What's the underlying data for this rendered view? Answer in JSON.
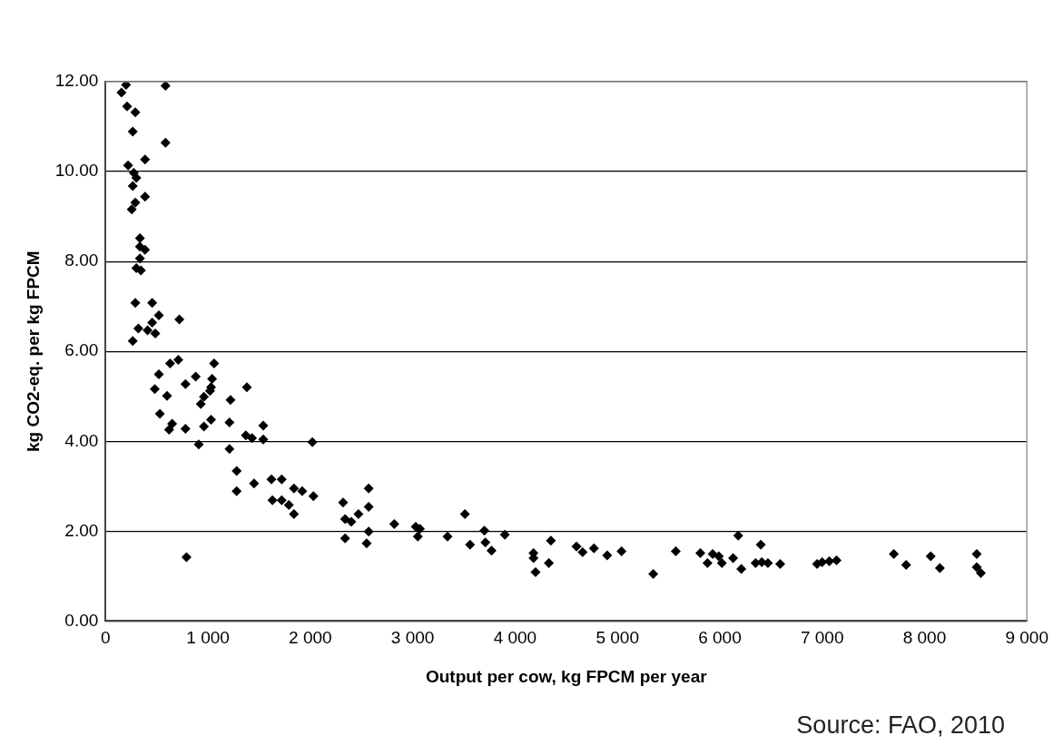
{
  "chart_data": {
    "type": "scatter",
    "xlabel": "Output per cow, kg FPCM per year",
    "ylabel": "kg CO2-eq. per kg FPCM",
    "annotations": [
      "Source: FAO, 2010"
    ],
    "xlim": [
      0,
      9000
    ],
    "xticks": [
      0,
      {
        "value": 1000,
        "label": "1 000"
      },
      {
        "value": 2000,
        "label": "2 000"
      },
      {
        "value": 3000,
        "label": "3 000"
      },
      {
        "value": 4000,
        "label": "4 000"
      },
      {
        "value": 5000,
        "label": "5 000"
      },
      {
        "value": 6000,
        "label": "6 000"
      },
      {
        "value": 7000,
        "label": "7 000"
      },
      {
        "value": 8000,
        "label": "8 000"
      },
      {
        "value": 9000,
        "label": "9 000"
      }
    ],
    "ylim": [
      0,
      12
    ],
    "yticks": [
      {
        "value": 0,
        "label": "0.00"
      },
      {
        "value": 2,
        "label": "2.00"
      },
      {
        "value": 4,
        "label": "4.00"
      },
      {
        "value": 6,
        "label": "6.00"
      },
      {
        "value": 8,
        "label": "8.00"
      },
      {
        "value": 10,
        "label": "10.00"
      },
      {
        "value": 12,
        "label": "12.00"
      }
    ],
    "grid": "y",
    "legend": false,
    "marker": "diamond",
    "series": [
      {
        "color": "#000000",
        "x": [
          200,
          155,
          210,
          290,
          265,
          585,
          585,
          385,
          220,
          275,
          300,
          265,
          385,
          290,
          255,
          335,
          335,
          385,
          335,
          300,
          345,
          290,
          455,
          520,
          455,
          720,
          320,
          410,
          485,
          265,
          710,
          630,
          1060,
          520,
          880,
          1040,
          780,
          480,
          1030,
          1380,
          600,
          960,
          930,
          1220,
          1020,
          530,
          650,
          620,
          780,
          960,
          1030,
          1210,
          1540,
          1370,
          1430,
          1540,
          910,
          1210,
          2020,
          1280,
          1280,
          1450,
          1620,
          1720,
          1840,
          1920,
          2030,
          1630,
          1720,
          1790,
          1840,
          2320,
          2570,
          2570,
          2470,
          2340,
          2400,
          2570,
          2340,
          2550,
          790,
          2820,
          3030,
          3070,
          3050,
          3340,
          3510,
          3560,
          3700,
          3710,
          3770,
          3900,
          4180,
          4180,
          4200,
          4350,
          4330,
          4600,
          4660,
          4770,
          4900,
          5040,
          5350,
          5570,
          5810,
          5880,
          5930,
          5990,
          6020,
          6130,
          6180,
          6210,
          6350,
          6400,
          6410,
          6470,
          6590,
          6950,
          7000,
          7070,
          7140,
          7700,
          7820,
          8060,
          8150,
          8510,
          8510,
          8550
        ],
        "values": [
          11.93,
          11.76,
          11.45,
          11.32,
          10.89,
          11.91,
          10.64,
          10.27,
          10.14,
          9.97,
          9.86,
          9.68,
          9.44,
          9.31,
          9.16,
          8.52,
          8.33,
          8.26,
          8.07,
          7.85,
          7.8,
          7.08,
          7.08,
          6.8,
          6.64,
          6.71,
          6.51,
          6.47,
          6.4,
          6.23,
          5.81,
          5.73,
          5.73,
          5.49,
          5.44,
          5.39,
          5.27,
          5.16,
          5.2,
          5.2,
          5.01,
          4.99,
          4.83,
          4.92,
          5.12,
          4.61,
          4.39,
          4.26,
          4.28,
          4.33,
          4.48,
          4.42,
          4.35,
          4.13,
          4.07,
          4.04,
          3.93,
          3.83,
          3.98,
          3.34,
          2.89,
          3.06,
          3.15,
          3.15,
          2.95,
          2.89,
          2.78,
          2.69,
          2.69,
          2.58,
          2.38,
          2.64,
          2.95,
          2.54,
          2.38,
          2.27,
          2.21,
          1.99,
          1.84,
          1.73,
          1.42,
          2.16,
          2.1,
          2.05,
          1.88,
          1.88,
          2.38,
          1.7,
          2.01,
          1.75,
          1.57,
          1.92,
          1.51,
          1.4,
          1.09,
          1.79,
          1.29,
          1.66,
          1.53,
          1.62,
          1.46,
          1.55,
          1.05,
          1.55,
          1.51,
          1.29,
          1.49,
          1.44,
          1.29,
          1.4,
          1.9,
          1.16,
          1.29,
          1.7,
          1.31,
          1.29,
          1.27,
          1.27,
          1.31,
          1.33,
          1.35,
          1.49,
          1.25,
          1.44,
          1.18,
          1.49,
          1.2,
          1.07
        ]
      }
    ]
  }
}
